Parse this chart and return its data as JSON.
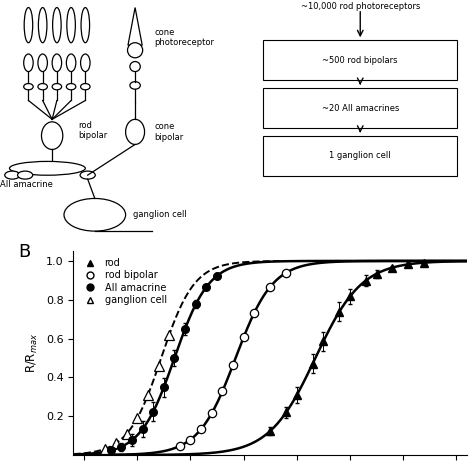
{
  "background_color": "#ffffff",
  "panel_b_ylabel": "R/R$_{max}$",
  "ylim": [
    0,
    1.05
  ],
  "yticks": [
    0.2,
    0.4,
    0.6,
    0.8,
    1.0
  ],
  "xlim": [
    -4.2,
    3.2
  ],
  "aii_log_i50": -2.3,
  "aii_n": 1.35,
  "gang_log_i50": -2.55,
  "gang_n": 1.4,
  "rb_log_i50": -1.15,
  "rb_n": 1.25,
  "rod_log_i50": 0.35,
  "rod_n": 1.0,
  "aii_x_data": [
    -3.5,
    -3.3,
    -3.1,
    -2.9,
    -2.7,
    -2.5,
    -2.3,
    -2.1,
    -1.9,
    -1.7,
    -1.5
  ],
  "aii_yerr": [
    0.02,
    0.02,
    0.03,
    0.04,
    0.05,
    0.05,
    0.04,
    0.03,
    0.02,
    0.01,
    0.005
  ],
  "gang_x_data": [
    -3.6,
    -3.4,
    -3.2,
    -3.0,
    -2.8,
    -2.6,
    -2.4
  ],
  "rb_x_data": [
    -2.2,
    -2.0,
    -1.8,
    -1.6,
    -1.4,
    -1.2,
    -1.0,
    -0.8,
    -0.5,
    -0.2
  ],
  "rod_x_data": [
    -0.5,
    -0.2,
    0.0,
    0.3,
    0.5,
    0.8,
    1.0,
    1.3,
    1.5,
    1.8,
    2.1,
    2.4
  ],
  "rod_yerr": [
    0.02,
    0.03,
    0.04,
    0.05,
    0.05,
    0.05,
    0.04,
    0.03,
    0.02,
    0.01,
    0.01,
    0.005
  ],
  "flow_top": "~10,000 rod photoreceptors",
  "flow_boxes": [
    "~500 rod bipolars",
    "~20 AII amacrines",
    "1 ganglion cell"
  ],
  "legend_entries": [
    "rod",
    "rod bipolar",
    "AII amacrine",
    "ganglion cell"
  ]
}
